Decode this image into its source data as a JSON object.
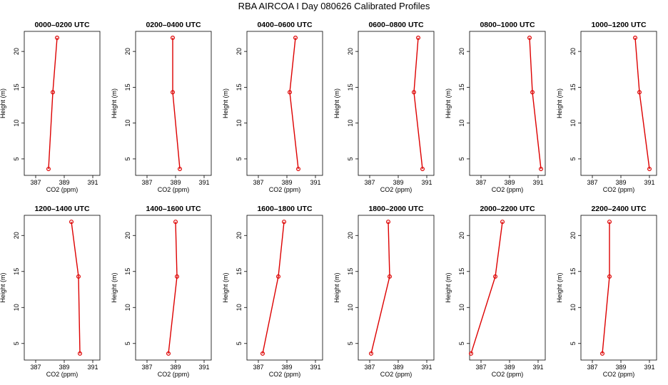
{
  "figure_title": "RBA AIRCOA I  Day 080626  Calibrated Profiles",
  "style": {
    "line_color": "#dd0000",
    "marker_color": "#dd0000",
    "axis_color": "#000000"
  },
  "chart_data": [
    {
      "type": "line",
      "title": "0000–0200 UTC",
      "xlabel": "CO2 (ppm)",
      "ylabel": "Height (m)",
      "xlim": [
        386.2,
        391.5
      ],
      "ylim": [
        2.7,
        22.8
      ],
      "xticks": [
        387,
        389,
        391
      ],
      "xtick_labels": [
        "387",
        "389",
        "391"
      ],
      "yticks": [
        5,
        10,
        15,
        20
      ],
      "ytick_labels": [
        "5",
        "10",
        "15",
        "20"
      ],
      "series": [
        {
          "x": [
            387.9,
            388.2,
            388.5
          ],
          "y": [
            3.6,
            14.3,
            21.9
          ]
        }
      ]
    },
    {
      "type": "line",
      "title": "0200–0400 UTC",
      "xlabel": "CO2 (ppm)",
      "ylabel": "Height (m)",
      "xlim": [
        386.2,
        391.5
      ],
      "ylim": [
        2.7,
        22.8
      ],
      "xticks": [
        387,
        389,
        391
      ],
      "xtick_labels": [
        "387",
        "389",
        "391"
      ],
      "yticks": [
        5,
        10,
        15,
        20
      ],
      "ytick_labels": [
        "5",
        "10",
        "15",
        "20"
      ],
      "series": [
        {
          "x": [
            389.3,
            388.8,
            388.8
          ],
          "y": [
            3.6,
            14.3,
            21.9
          ]
        }
      ]
    },
    {
      "type": "line",
      "title": "0400–0600 UTC",
      "xlabel": "CO2 (ppm)",
      "ylabel": "Height (m)",
      "xlim": [
        386.2,
        391.5
      ],
      "ylim": [
        2.7,
        22.8
      ],
      "xticks": [
        387,
        389,
        391
      ],
      "xtick_labels": [
        "387",
        "389",
        "391"
      ],
      "yticks": [
        5,
        10,
        15,
        20
      ],
      "ytick_labels": [
        "5",
        "10",
        "15",
        "20"
      ],
      "series": [
        {
          "x": [
            389.8,
            389.2,
            389.6
          ],
          "y": [
            3.6,
            14.3,
            21.9
          ]
        }
      ]
    },
    {
      "type": "line",
      "title": "0600–0800 UTC",
      "xlabel": "CO2 (ppm)",
      "ylabel": "Height (m)",
      "xlim": [
        386.2,
        391.5
      ],
      "ylim": [
        2.7,
        22.8
      ],
      "xticks": [
        387,
        389,
        391
      ],
      "xtick_labels": [
        "387",
        "389",
        "391"
      ],
      "yticks": [
        5,
        10,
        15,
        20
      ],
      "ytick_labels": [
        "5",
        "10",
        "15",
        "20"
      ],
      "series": [
        {
          "x": [
            390.7,
            390.1,
            390.4
          ],
          "y": [
            3.6,
            14.3,
            21.9
          ]
        }
      ]
    },
    {
      "type": "line",
      "title": "0800–1000 UTC",
      "xlabel": "CO2 (ppm)",
      "ylabel": "Height (m)",
      "xlim": [
        386.2,
        391.5
      ],
      "ylim": [
        2.7,
        22.8
      ],
      "xticks": [
        387,
        389,
        391
      ],
      "xtick_labels": [
        "387",
        "389",
        "391"
      ],
      "yticks": [
        5,
        10,
        15,
        20
      ],
      "ytick_labels": [
        "5",
        "10",
        "15",
        "20"
      ],
      "series": [
        {
          "x": [
            391.2,
            390.6,
            390.4
          ],
          "y": [
            3.6,
            14.3,
            21.9
          ]
        }
      ]
    },
    {
      "type": "line",
      "title": "1000–1200 UTC",
      "xlabel": "CO2 (ppm)",
      "ylabel": "Height (m)",
      "xlim": [
        386.2,
        391.5
      ],
      "ylim": [
        2.7,
        22.8
      ],
      "xticks": [
        387,
        389,
        391
      ],
      "xtick_labels": [
        "387",
        "389",
        "391"
      ],
      "yticks": [
        5,
        10,
        15,
        20
      ],
      "ytick_labels": [
        "5",
        "10",
        "15",
        "20"
      ],
      "series": [
        {
          "x": [
            391.0,
            390.3,
            390.0
          ],
          "y": [
            3.6,
            14.3,
            21.9
          ]
        }
      ]
    },
    {
      "type": "line",
      "title": "1200–1400 UTC",
      "xlabel": "CO2 (ppm)",
      "ylabel": "Height (m)",
      "xlim": [
        386.2,
        391.5
      ],
      "ylim": [
        2.7,
        22.8
      ],
      "xticks": [
        387,
        389,
        391
      ],
      "xtick_labels": [
        "387",
        "389",
        "391"
      ],
      "yticks": [
        5,
        10,
        15,
        20
      ],
      "ytick_labels": [
        "5",
        "10",
        "15",
        "20"
      ],
      "series": [
        {
          "x": [
            390.1,
            390.0,
            389.5
          ],
          "y": [
            3.6,
            14.3,
            21.9
          ]
        }
      ]
    },
    {
      "type": "line",
      "title": "1400–1600 UTC",
      "xlabel": "CO2 (ppm)",
      "ylabel": "Height (m)",
      "xlim": [
        386.2,
        391.5
      ],
      "ylim": [
        2.7,
        22.8
      ],
      "xticks": [
        387,
        389,
        391
      ],
      "xtick_labels": [
        "387",
        "389",
        "391"
      ],
      "yticks": [
        5,
        10,
        15,
        20
      ],
      "ytick_labels": [
        "5",
        "10",
        "15",
        "20"
      ],
      "series": [
        {
          "x": [
            388.5,
            389.1,
            389.0
          ],
          "y": [
            3.6,
            14.3,
            21.9
          ]
        }
      ]
    },
    {
      "type": "line",
      "title": "1600–1800 UTC",
      "xlabel": "CO2 (ppm)",
      "ylabel": "Height (m)",
      "xlim": [
        386.2,
        391.5
      ],
      "ylim": [
        2.7,
        22.8
      ],
      "xticks": [
        387,
        389,
        391
      ],
      "xtick_labels": [
        "387",
        "389",
        "391"
      ],
      "yticks": [
        5,
        10,
        15,
        20
      ],
      "ytick_labels": [
        "5",
        "10",
        "15",
        "20"
      ],
      "series": [
        {
          "x": [
            387.3,
            388.4,
            388.8
          ],
          "y": [
            3.6,
            14.3,
            21.9
          ]
        }
      ]
    },
    {
      "type": "line",
      "title": "1800–2000 UTC",
      "xlabel": "CO2 (ppm)",
      "ylabel": "Height (m)",
      "xlim": [
        386.2,
        391.5
      ],
      "ylim": [
        2.7,
        22.8
      ],
      "xticks": [
        387,
        389,
        391
      ],
      "xtick_labels": [
        "387",
        "389",
        "391"
      ],
      "yticks": [
        5,
        10,
        15,
        20
      ],
      "ytick_labels": [
        "5",
        "10",
        "15",
        "20"
      ],
      "series": [
        {
          "x": [
            387.1,
            388.4,
            388.3
          ],
          "y": [
            3.6,
            14.3,
            21.9
          ]
        }
      ]
    },
    {
      "type": "line",
      "title": "2000–2200 UTC",
      "xlabel": "CO2 (ppm)",
      "ylabel": "Height (m)",
      "xlim": [
        386.2,
        391.5
      ],
      "ylim": [
        2.7,
        22.8
      ],
      "xticks": [
        387,
        389,
        391
      ],
      "xtick_labels": [
        "387",
        "389",
        "391"
      ],
      "yticks": [
        5,
        10,
        15,
        20
      ],
      "ytick_labels": [
        "5",
        "10",
        "15",
        "20"
      ],
      "series": [
        {
          "x": [
            386.3,
            388.0,
            388.5
          ],
          "y": [
            3.6,
            14.3,
            21.9
          ]
        }
      ]
    },
    {
      "type": "line",
      "title": "2200–2400 UTC",
      "xlabel": "CO2 (ppm)",
      "ylabel": "Height (m)",
      "xlim": [
        386.2,
        391.5
      ],
      "ylim": [
        2.7,
        22.8
      ],
      "xticks": [
        387,
        389,
        391
      ],
      "xtick_labels": [
        "387",
        "389",
        "391"
      ],
      "yticks": [
        5,
        10,
        15,
        20
      ],
      "ytick_labels": [
        "5",
        "10",
        "15",
        "20"
      ],
      "series": [
        {
          "x": [
            387.7,
            388.2,
            388.2
          ],
          "y": [
            3.6,
            14.3,
            21.9
          ]
        }
      ]
    }
  ]
}
